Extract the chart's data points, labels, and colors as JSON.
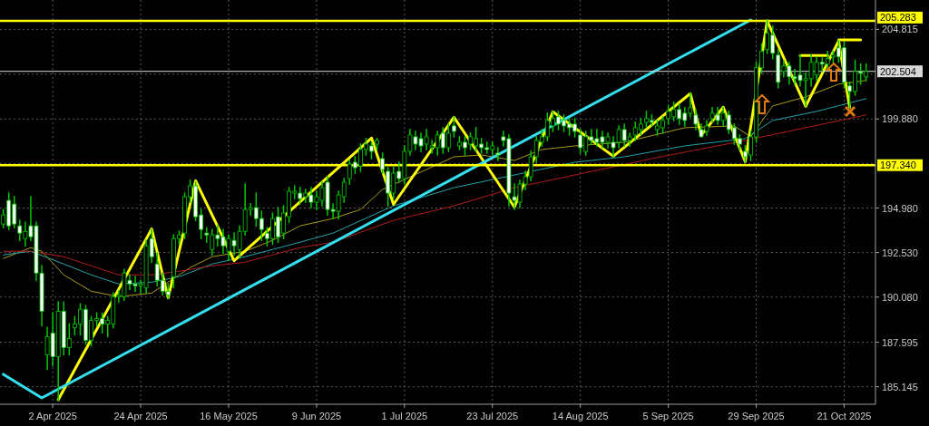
{
  "chart_data": {
    "type": "candlestick",
    "color": "#00c800",
    "ylim": [
      184.18,
      206.43
    ],
    "categories": [
      null,
      null,
      null,
      null,
      null,
      null,
      null,
      null,
      null,
      "2 Apr 2025",
      null,
      null,
      null,
      null,
      null,
      null,
      null,
      null,
      null,
      null,
      null,
      null,
      null,
      null,
      null,
      "24 Apr 2025",
      null,
      null,
      null,
      null,
      null,
      null,
      null,
      null,
      null,
      null,
      null,
      null,
      null,
      null,
      null,
      "16 May 2025",
      null,
      null,
      null,
      null,
      null,
      null,
      null,
      null,
      null,
      null,
      null,
      null,
      null,
      null,
      null,
      "9 Jun 2025",
      null,
      null,
      null,
      null,
      null,
      null,
      null,
      null,
      null,
      null,
      null,
      null,
      null,
      null,
      null,
      "1 Jul 2025",
      null,
      null,
      null,
      null,
      null,
      null,
      null,
      null,
      null,
      null,
      null,
      null,
      null,
      null,
      null,
      "23 Jul 2025",
      null,
      null,
      null,
      null,
      null,
      null,
      null,
      null,
      null,
      null,
      null,
      null,
      null,
      null,
      null,
      "14 Aug 2025",
      null,
      null,
      null,
      null,
      null,
      null,
      null,
      null,
      null,
      null,
      null,
      null,
      null,
      null,
      null,
      "5 Sep 2025",
      null,
      null,
      null,
      null,
      null,
      null,
      null,
      null,
      null,
      null,
      null,
      null,
      null,
      null,
      null,
      "29 Sep 2025",
      null,
      null,
      null,
      null,
      null,
      null,
      null,
      null,
      null,
      null,
      null,
      null,
      null,
      null,
      null,
      "21 Oct 2025",
      null,
      null,
      null,
      null
    ],
    "yticks": [
      {
        "value": 185.145,
        "label": "185.145"
      },
      {
        "value": 187.595,
        "label": "187.595"
      },
      {
        "value": 190.08,
        "label": "190.080"
      },
      {
        "value": 192.53,
        "label": "192.530"
      },
      {
        "value": 194.98,
        "label": "194.980"
      },
      {
        "value": 197.43,
        "label": null
      },
      {
        "value": 199.88,
        "label": "199.880"
      },
      {
        "value": 202.35,
        "label": null
      },
      {
        "value": 204.815,
        "label": "204.815"
      }
    ],
    "grid": true,
    "ohlc": [
      [
        194.1,
        194.9,
        193.9,
        194.6
      ],
      [
        195.4,
        195.8,
        193.8,
        194.0
      ],
      [
        195.2,
        195.6,
        193.9,
        194.1
      ],
      [
        194.0,
        194.3,
        193.2,
        193.6
      ],
      [
        193.3,
        194.2,
        192.9,
        193.7
      ],
      [
        194.0,
        195.6,
        193.2,
        193.4
      ],
      [
        194.0,
        194.2,
        191.0,
        191.4
      ],
      [
        191.4,
        191.8,
        188.5,
        189.3
      ],
      [
        186.9,
        188.4,
        186.1,
        187.9
      ],
      [
        188.1,
        189.2,
        186.3,
        186.8
      ],
      [
        186.8,
        189.8,
        184.4,
        189.3
      ],
      [
        189.3,
        189.8,
        186.9,
        187.3
      ],
      [
        187.3,
        188.6,
        186.9,
        187.8
      ],
      [
        188.4,
        189.0,
        188.0,
        188.6
      ],
      [
        188.6,
        189.7,
        188.0,
        189.4
      ],
      [
        189.4,
        189.6,
        187.5,
        187.7
      ],
      [
        187.7,
        189.0,
        187.4,
        188.8
      ],
      [
        188.8,
        189.2,
        188.5,
        188.9
      ],
      [
        188.9,
        189.2,
        188.1,
        188.6
      ],
      [
        188.6,
        189.0,
        187.9,
        188.8
      ],
      [
        188.6,
        190.3,
        188.4,
        190.1
      ],
      [
        190.1,
        190.4,
        189.8,
        190.2
      ],
      [
        190.1,
        191.6,
        189.9,
        191.4
      ],
      [
        191.0,
        191.3,
        190.5,
        190.8
      ],
      [
        190.8,
        191.2,
        190.4,
        190.7
      ],
      [
        190.7,
        191.0,
        190.3,
        190.8
      ],
      [
        190.6,
        193.2,
        190.3,
        192.9
      ],
      [
        193.3,
        193.8,
        192.0,
        192.3
      ],
      [
        191.9,
        192.5,
        190.7,
        191.0
      ],
      [
        191.0,
        191.4,
        190.2,
        190.4
      ],
      [
        190.4,
        190.8,
        190.0,
        190.2
      ],
      [
        191.2,
        193.5,
        190.6,
        193.3
      ],
      [
        193.3,
        193.7,
        193.0,
        193.5
      ],
      [
        193.6,
        195.8,
        193.3,
        195.6
      ],
      [
        195.6,
        196.5,
        195.3,
        196.2
      ],
      [
        196.2,
        196.4,
        194.3,
        194.5
      ],
      [
        194.6,
        194.9,
        193.3,
        193.8
      ],
      [
        193.6,
        193.9,
        193.1,
        193.5
      ],
      [
        192.7,
        193.8,
        192.4,
        193.5
      ],
      [
        193.5,
        194.0,
        192.9,
        193.3
      ],
      [
        193.4,
        193.8,
        192.5,
        192.9
      ],
      [
        192.6,
        193.5,
        192.1,
        193.3
      ],
      [
        193.2,
        193.6,
        192.4,
        192.9
      ],
      [
        192.7,
        194.0,
        192.3,
        193.7
      ],
      [
        193.7,
        196.3,
        193.5,
        194.9
      ],
      [
        194.9,
        195.2,
        194.6,
        195.0
      ],
      [
        195.0,
        195.8,
        194.0,
        194.4
      ],
      [
        194.4,
        194.8,
        193.2,
        193.8
      ],
      [
        193.6,
        193.9,
        192.9,
        193.3
      ],
      [
        193.3,
        194.7,
        193.0,
        194.4
      ],
      [
        194.5,
        195.0,
        193.1,
        193.4
      ],
      [
        193.6,
        195.1,
        193.3,
        194.7
      ],
      [
        194.5,
        196.1,
        194.2,
        195.9
      ],
      [
        195.8,
        196.2,
        195.5,
        195.9
      ],
      [
        195.8,
        196.1,
        195.2,
        195.5
      ],
      [
        195.6,
        196.0,
        195.3,
        195.8
      ],
      [
        195.7,
        196.1,
        195.0,
        195.3
      ],
      [
        195.3,
        195.9,
        194.9,
        195.6
      ],
      [
        195.4,
        196.4,
        195.1,
        196.1
      ],
      [
        196.4,
        196.7,
        194.6,
        194.9
      ],
      [
        194.9,
        195.2,
        194.4,
        194.8
      ],
      [
        194.8,
        195.9,
        194.4,
        195.7
      ],
      [
        195.6,
        196.6,
        195.3,
        196.4
      ],
      [
        196.6,
        197.6,
        196.3,
        197.4
      ],
      [
        197.5,
        197.8,
        196.9,
        197.2
      ],
      [
        197.3,
        198.5,
        197.0,
        198.2
      ],
      [
        198.2,
        198.8,
        197.9,
        198.5
      ],
      [
        198.4,
        198.6,
        197.7,
        198.1
      ],
      [
        198.5,
        198.8,
        198.2,
        198.7
      ],
      [
        197.7,
        198.0,
        196.9,
        197.1
      ],
      [
        197.0,
        197.2,
        195.1,
        195.8
      ],
      [
        195.8,
        197.2,
        195.5,
        196.9
      ],
      [
        197.0,
        197.5,
        196.4,
        196.6
      ],
      [
        196.6,
        198.4,
        196.3,
        198.1
      ],
      [
        198.1,
        199.3,
        197.9,
        199.0
      ],
      [
        198.9,
        199.2,
        198.2,
        198.5
      ],
      [
        198.8,
        199.1,
        198.1,
        198.4
      ],
      [
        198.5,
        199.3,
        198.2,
        198.9
      ],
      [
        198.3,
        198.7,
        198.0,
        198.4
      ],
      [
        198.3,
        199.2,
        197.9,
        199.0
      ],
      [
        199.1,
        199.4,
        198.0,
        198.3
      ],
      [
        198.3,
        199.6,
        198.1,
        199.1
      ],
      [
        199.5,
        200.0,
        198.9,
        199.2
      ],
      [
        198.4,
        198.9,
        198.2,
        198.6
      ],
      [
        198.6,
        198.9,
        197.9,
        198.3
      ],
      [
        198.5,
        199.1,
        198.2,
        198.9
      ],
      [
        198.4,
        199.4,
        198.1,
        198.8
      ],
      [
        198.5,
        198.8,
        198.0,
        198.3
      ],
      [
        198.3,
        198.6,
        198.0,
        198.2
      ],
      [
        198.2,
        198.6,
        197.9,
        198.4
      ],
      [
        198.0,
        198.3,
        197.6,
        197.9
      ],
      [
        198.9,
        199.2,
        198.4,
        198.7
      ],
      [
        198.8,
        199.0,
        195.1,
        195.8
      ],
      [
        195.6,
        196.3,
        194.9,
        195.4
      ],
      [
        195.3,
        196.5,
        195.0,
        196.3
      ],
      [
        196.3,
        197.0,
        196.0,
        196.7
      ],
      [
        196.7,
        198.1,
        196.5,
        197.8
      ],
      [
        197.8,
        198.9,
        197.5,
        198.7
      ],
      [
        198.6,
        199.3,
        198.4,
        198.9
      ],
      [
        198.9,
        200.2,
        198.7,
        199.8
      ],
      [
        199.5,
        200.3,
        199.2,
        199.9
      ],
      [
        200.0,
        200.3,
        199.3,
        199.6
      ],
      [
        199.8,
        200.1,
        199.2,
        199.5
      ],
      [
        199.6,
        199.9,
        199.0,
        199.4
      ],
      [
        199.6,
        199.9,
        198.9,
        199.2
      ],
      [
        199.0,
        199.3,
        198.0,
        198.3
      ],
      [
        198.1,
        199.2,
        197.9,
        198.9
      ],
      [
        198.9,
        199.3,
        198.5,
        198.7
      ],
      [
        198.8,
        199.3,
        198.4,
        198.6
      ],
      [
        198.9,
        199.2,
        198.3,
        198.6
      ],
      [
        198.6,
        199.1,
        198.3,
        198.9
      ],
      [
        198.6,
        198.9,
        197.8,
        198.3
      ],
      [
        198.6,
        199.5,
        198.3,
        199.3
      ],
      [
        199.3,
        199.6,
        198.4,
        198.7
      ],
      [
        198.7,
        199.1,
        198.4,
        198.9
      ],
      [
        199.0,
        199.7,
        198.7,
        199.4
      ],
      [
        199.3,
        199.9,
        199.0,
        199.6
      ],
      [
        199.7,
        200.3,
        199.4,
        199.9
      ],
      [
        199.8,
        200.1,
        199.5,
        199.7
      ],
      [
        199.3,
        199.8,
        199.0,
        199.5
      ],
      [
        199.4,
        200.0,
        199.1,
        199.8
      ],
      [
        199.9,
        200.6,
        199.6,
        200.3
      ],
      [
        200.0,
        200.8,
        199.8,
        200.4
      ],
      [
        200.4,
        200.7,
        199.6,
        199.9
      ],
      [
        200.2,
        200.5,
        199.5,
        199.8
      ],
      [
        200.2,
        201.3,
        200.0,
        200.5
      ],
      [
        200.1,
        200.4,
        199.3,
        199.6
      ],
      [
        199.3,
        199.6,
        198.9,
        198.9
      ],
      [
        199.2,
        199.8,
        199.0,
        199.5
      ],
      [
        199.9,
        200.5,
        199.7,
        200.2
      ],
      [
        200.1,
        200.5,
        199.6,
        199.8
      ],
      [
        199.8,
        200.5,
        199.5,
        200.2
      ],
      [
        200.1,
        200.3,
        199.1,
        199.3
      ],
      [
        199.4,
        199.6,
        198.5,
        198.8
      ],
      [
        198.8,
        199.0,
        198.2,
        198.5
      ],
      [
        198.1,
        198.4,
        197.5,
        197.8
      ],
      [
        197.9,
        199.2,
        197.6,
        198.9
      ],
      [
        198.9,
        203.0,
        198.6,
        202.7
      ],
      [
        202.7,
        204.0,
        202.4,
        203.6
      ],
      [
        203.7,
        205.3,
        203.5,
        204.6
      ],
      [
        204.5,
        205.0,
        203.2,
        203.5
      ],
      [
        203.4,
        203.7,
        201.6,
        201.9
      ],
      [
        202.5,
        203.1,
        202.2,
        202.8
      ],
      [
        202.8,
        203.0,
        201.8,
        202.2
      ],
      [
        202.2,
        202.6,
        201.8,
        202.1
      ],
      [
        202.3,
        203.4,
        201.7,
        202.0
      ],
      [
        202.0,
        202.4,
        200.6,
        202.1
      ],
      [
        202.1,
        203.4,
        201.7,
        203.0
      ],
      [
        202.3,
        203.3,
        202.0,
        203.0
      ],
      [
        203.0,
        203.3,
        202.5,
        202.9
      ],
      [
        202.9,
        203.6,
        202.6,
        203.2
      ],
      [
        203.3,
        203.6,
        203.0,
        203.4
      ],
      [
        203.8,
        204.2,
        203.0,
        203.3
      ],
      [
        203.8,
        204.1,
        201.6,
        201.9
      ],
      [
        201.7,
        201.9,
        200.5,
        201.4
      ],
      [
        201.4,
        203.1,
        201.2,
        202.5
      ],
      [
        202.5,
        202.9,
        201.8,
        202.4
      ],
      [
        202.2,
        202.9,
        202.0,
        202.5
      ]
    ],
    "series": [
      {
        "type": "line",
        "color": "#a89b18",
        "values": [
          192.2,
          null,
          null,
          null,
          null,
          192.8,
          null,
          192.6,
          null,
          null,
          null,
          191.3,
          null,
          null,
          null,
          null,
          190.4,
          null,
          null,
          null,
          null,
          190.1,
          null,
          null,
          null,
          null,
          null,
          190.3,
          null,
          null,
          190.9,
          null,
          null,
          null,
          191.7,
          null,
          null,
          null,
          192.3,
          null,
          null,
          null,
          null,
          null,
          192.6,
          null,
          null,
          null,
          null,
          193.2,
          null,
          null,
          null,
          null,
          194.0,
          null,
          null,
          null,
          null,
          null,
          194.4,
          null,
          null,
          null,
          null,
          194.9,
          null,
          null,
          null,
          196.0,
          null,
          null,
          null,
          null,
          null,
          null,
          null,
          197.1,
          null,
          null,
          null,
          null,
          197.8,
          null,
          null,
          null,
          null,
          197.9,
          null,
          null,
          null,
          null,
          null,
          197.6,
          null,
          null,
          null,
          null,
          198.2,
          null,
          null,
          null,
          null,
          null,
          198.4,
          null,
          null,
          null,
          null,
          null,
          null,
          null,
          null,
          198.6,
          null,
          null,
          null,
          null,
          null,
          null,
          null,
          null,
          null,
          null,
          199.4,
          null,
          null,
          null,
          null,
          null,
          null,
          null,
          null,
          199.5,
          null,
          null,
          198.9,
          null,
          null,
          null,
          200.6,
          null,
          null,
          null,
          null,
          null,
          201.1,
          null,
          null,
          null,
          null,
          null,
          201.8,
          null,
          null,
          null,
          null,
          202.0
        ]
      },
      {
        "type": "line",
        "color": "#1fa3a8",
        "values": [
          192.4,
          null,
          null,
          null,
          null,
          192.6,
          null,
          null,
          null,
          null,
          null,
          191.9,
          null,
          null,
          null,
          null,
          191.3,
          null,
          null,
          null,
          null,
          190.8,
          null,
          null,
          null,
          null,
          null,
          190.9,
          null,
          null,
          null,
          null,
          191.2,
          null,
          null,
          null,
          null,
          null,
          191.9,
          null,
          null,
          null,
          null,
          null,
          192.3,
          null,
          null,
          null,
          null,
          192.7,
          null,
          null,
          null,
          null,
          193.1,
          null,
          null,
          null,
          null,
          null,
          193.6,
          null,
          null,
          null,
          null,
          null,
          null,
          null,
          null,
          null,
          null,
          195.1,
          null,
          null,
          null,
          null,
          null,
          null,
          null,
          null,
          null,
          null,
          196.1,
          null,
          null,
          null,
          null,
          null,
          null,
          null,
          null,
          null,
          null,
          196.8,
          null,
          null,
          null,
          null,
          null,
          null,
          null,
          null,
          null,
          null,
          197.5,
          null,
          null,
          null,
          null,
          null,
          null,
          null,
          null,
          197.8,
          null,
          null,
          null,
          null,
          null,
          null,
          null,
          null,
          null,
          null,
          198.4,
          null,
          null,
          null,
          null,
          null,
          null,
          null,
          null,
          null,
          null,
          198.8,
          null,
          null,
          null,
          null,
          199.8,
          null,
          null,
          null,
          null,
          null,
          null,
          null,
          200.3,
          null,
          null,
          null,
          null,
          null,
          null,
          null,
          null,
          201.0
        ]
      },
      {
        "type": "line",
        "color": "#b01c1c",
        "values": [
          192.6,
          null,
          null,
          null,
          null,
          192.6,
          null,
          null,
          null,
          null,
          null,
          192.3,
          null,
          null,
          null,
          null,
          191.8,
          null,
          null,
          null,
          null,
          191.3,
          null,
          null,
          null,
          null,
          null,
          191.3,
          null,
          null,
          null,
          null,
          191.5,
          null,
          null,
          null,
          null,
          null,
          191.8,
          null,
          null,
          null,
          null,
          null,
          192.0,
          null,
          null,
          null,
          null,
          192.4,
          null,
          null,
          null,
          null,
          192.8,
          null,
          null,
          null,
          null,
          null,
          193.1,
          null,
          null,
          null,
          null,
          null,
          null,
          null,
          null,
          null,
          null,
          194.3,
          null,
          null,
          null,
          null,
          null,
          null,
          null,
          null,
          null,
          null,
          195.1,
          null,
          null,
          null,
          null,
          null,
          null,
          null,
          null,
          null,
          null,
          196.1,
          null,
          null,
          null,
          null,
          null,
          null,
          null,
          null,
          null,
          null,
          196.8,
          null,
          null,
          null,
          null,
          null,
          null,
          null,
          null,
          null,
          null,
          null,
          null,
          null,
          197.7,
          null,
          null,
          null,
          null,
          null,
          null,
          null,
          null,
          null,
          null,
          null,
          null,
          null,
          null,
          null,
          null,
          198.7,
          null,
          null,
          null,
          null,
          null,
          null,
          null,
          null,
          null,
          null,
          199.4,
          null,
          null,
          null,
          null,
          null,
          null,
          null,
          null,
          null,
          null,
          200.1
        ]
      },
      {
        "type": "line",
        "color": "#ffff00",
        "values": [
          null,
          null,
          null,
          null,
          null,
          null,
          null,
          null,
          null,
          null,
          184.43,
          null,
          null,
          null,
          null,
          null,
          null,
          null,
          null,
          null,
          null,
          null,
          null,
          null,
          null,
          null,
          null,
          193.83,
          null,
          null,
          190.03,
          null,
          null,
          null,
          null,
          196.48,
          null,
          null,
          null,
          null,
          null,
          null,
          192.08,
          null,
          null,
          null,
          null,
          null,
          null,
          null,
          null,
          null,
          null,
          null,
          null,
          null,
          null,
          null,
          null,
          null,
          null,
          null,
          null,
          null,
          null,
          null,
          null,
          198.83,
          null,
          null,
          null,
          195.18,
          null,
          null,
          null,
          null,
          null,
          null,
          null,
          null,
          null,
          null,
          199.98,
          null,
          null,
          null,
          null,
          null,
          null,
          null,
          null,
          null,
          null,
          195.03,
          null,
          null,
          null,
          null,
          null,
          null,
          200.28,
          null,
          null,
          null,
          null,
          null,
          null,
          null,
          null,
          null,
          null,
          197.83,
          null,
          null,
          null,
          null,
          null,
          null,
          null,
          null,
          null,
          null,
          null,
          null,
          null,
          201.28,
          null,
          198.98,
          null,
          null,
          null,
          200.53,
          null,
          null,
          null,
          197.53,
          null,
          null,
          null,
          205.28,
          null,
          null,
          null,
          null,
          null,
          null,
          200.58,
          null,
          null,
          null,
          null,
          null,
          204.18,
          null,
          200.53,
          null,
          null,
          null
        ]
      },
      {
        "type": "line",
        "color": "#33e0f0",
        "values": [
          185.83,
          null,
          null,
          null,
          null,
          null,
          null,
          184.53,
          null,
          null,
          null,
          null,
          null,
          null,
          null,
          null,
          null,
          null,
          null,
          null,
          null,
          null,
          null,
          null,
          null,
          null,
          null,
          null,
          null,
          null,
          null,
          null,
          null,
          null,
          null,
          null,
          null,
          null,
          null,
          null,
          null,
          null,
          null,
          null,
          null,
          null,
          null,
          null,
          null,
          null,
          null,
          null,
          null,
          null,
          null,
          null,
          null,
          null,
          null,
          null,
          null,
          null,
          null,
          null,
          null,
          null,
          null,
          null,
          null,
          null,
          null,
          null,
          null,
          null,
          null,
          null,
          null,
          null,
          null,
          null,
          null,
          null,
          null,
          null,
          null,
          null,
          null,
          null,
          null,
          null,
          null,
          null,
          null,
          null,
          null,
          null,
          null,
          null,
          null,
          null,
          null,
          null,
          null,
          null,
          null,
          null,
          null,
          null,
          null,
          null,
          null,
          null,
          null,
          null,
          null,
          null,
          null,
          null,
          null,
          null,
          null,
          null,
          null,
          null,
          null,
          null,
          null,
          null,
          null,
          null,
          null,
          null,
          null,
          null,
          null,
          null,
          205.33,
          null,
          null,
          null,
          null,
          null,
          null,
          null,
          null,
          null,
          null,
          null,
          null,
          null,
          null,
          null,
          null,
          null,
          null,
          null,
          null,
          null
        ]
      },
      {
        "type": "line",
        "color": "#ffff00",
        "values": [
          null,
          null,
          null,
          null,
          null,
          null,
          null,
          null,
          null,
          null,
          null,
          null,
          null,
          null,
          null,
          null,
          null,
          null,
          null,
          null,
          null,
          null,
          null,
          null,
          null,
          null,
          null,
          null,
          null,
          null,
          null,
          null,
          null,
          null,
          null,
          null,
          null,
          null,
          null,
          null,
          null,
          null,
          null,
          null,
          null,
          null,
          null,
          null,
          null,
          null,
          null,
          null,
          null,
          null,
          null,
          null,
          null,
          null,
          null,
          null,
          null,
          null,
          null,
          null,
          null,
          null,
          null,
          null,
          null,
          null,
          null,
          null,
          null,
          null,
          null,
          null,
          null,
          null,
          null,
          null,
          null,
          null,
          null,
          null,
          null,
          null,
          null,
          null,
          null,
          null,
          null,
          null,
          null,
          null,
          null,
          null,
          null,
          null,
          null,
          null,
          null,
          null,
          null,
          null,
          null,
          null,
          null,
          null,
          null,
          null,
          null,
          null,
          null,
          null,
          null,
          null,
          null,
          null,
          null,
          null,
          null,
          null,
          null,
          null,
          null,
          null,
          null,
          null,
          null,
          null,
          null,
          null,
          null,
          null,
          null,
          null,
          null,
          null,
          null,
          null,
          null,
          null,
          null,
          null,
          null,
          203.38,
          203.38,
          203.38,
          203.38,
          203.38,
          203.38,
          null,
          null,
          null,
          null,
          null,
          null,
          null
        ]
      },
      {
        "type": "line",
        "color": "#ffff00",
        "values": [
          null,
          null,
          null,
          null,
          null,
          null,
          null,
          null,
          null,
          null,
          null,
          null,
          null,
          null,
          null,
          null,
          null,
          null,
          null,
          null,
          null,
          null,
          null,
          null,
          null,
          null,
          null,
          null,
          null,
          null,
          null,
          null,
          null,
          null,
          null,
          null,
          null,
          null,
          null,
          null,
          null,
          null,
          null,
          null,
          null,
          null,
          null,
          null,
          null,
          null,
          null,
          null,
          null,
          null,
          null,
          null,
          null,
          null,
          null,
          null,
          null,
          null,
          null,
          null,
          null,
          null,
          null,
          null,
          null,
          null,
          null,
          null,
          null,
          null,
          null,
          null,
          null,
          null,
          null,
          null,
          null,
          null,
          null,
          null,
          null,
          null,
          null,
          null,
          null,
          null,
          null,
          null,
          null,
          null,
          null,
          null,
          null,
          null,
          null,
          null,
          null,
          null,
          null,
          null,
          null,
          null,
          null,
          null,
          null,
          null,
          null,
          null,
          null,
          null,
          null,
          null,
          null,
          null,
          null,
          null,
          null,
          null,
          null,
          null,
          null,
          null,
          null,
          null,
          null,
          null,
          null,
          null,
          null,
          null,
          null,
          null,
          null,
          null,
          null,
          null,
          null,
          null,
          null,
          null,
          null,
          null,
          null,
          null,
          null,
          null,
          null,
          null,
          204.23,
          204.23,
          204.23,
          204.23,
          204.23,
          null
        ]
      }
    ],
    "ref_lines": [
      {
        "axis": "y",
        "value": 205.283,
        "label": "205.283",
        "color": "#ffff00"
      },
      {
        "axis": "y",
        "value": 197.34,
        "label": "197.340",
        "color": "#ffff00"
      },
      {
        "axis": "y",
        "value": 202.504,
        "label": "202.504",
        "color": "#d8d8d8"
      }
    ]
  }
}
